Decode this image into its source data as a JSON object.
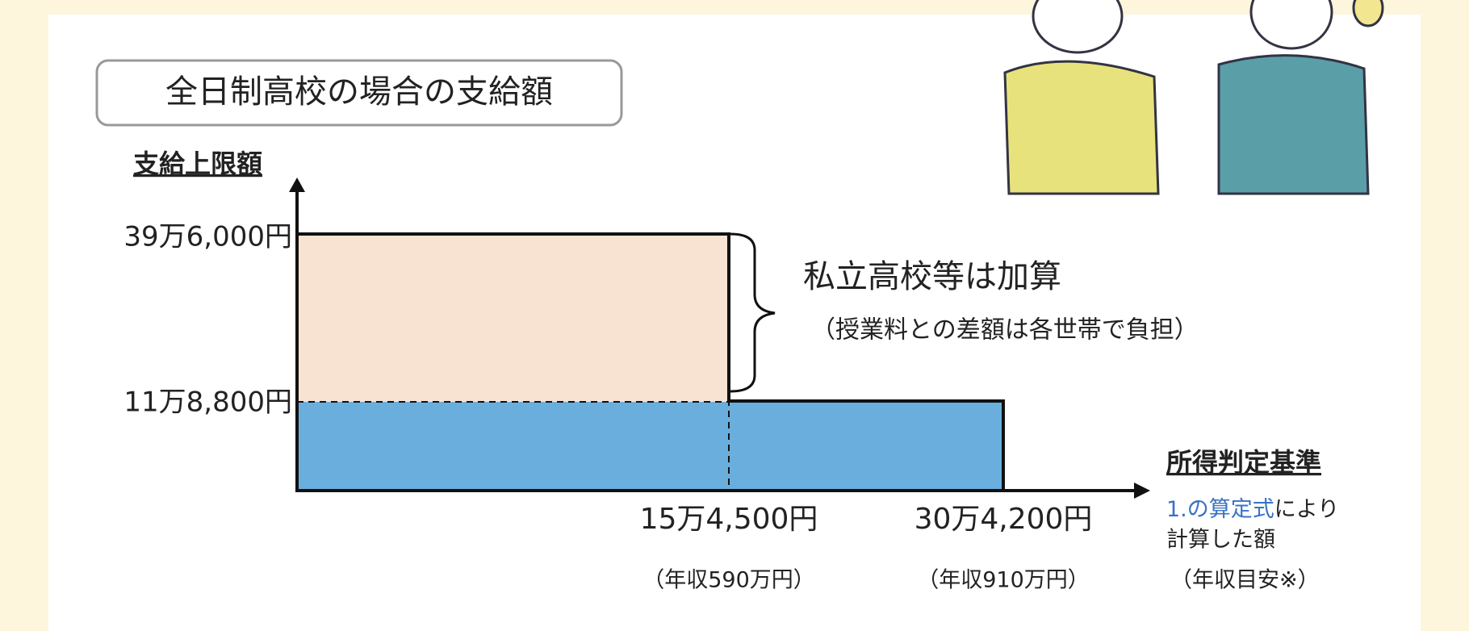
{
  "title": "全日制高校の場合の支給額",
  "y_axis": {
    "label": "支給上限額",
    "upper": "39万6,000円",
    "lower": "11万8,800円"
  },
  "bracket": {
    "text": "私立高校等は加算",
    "note": "（授業料との差額は各世帯で負担）"
  },
  "x_axis": {
    "label": "所得判定基準",
    "note_highlight": "1.の算定式",
    "note_rest": "により",
    "note_line2": "計算した額",
    "note_line3": "（年収目安※）",
    "ticks": [
      {
        "amount": "15万4,500円",
        "income": "（年収590万円）"
      },
      {
        "amount": "30万4,200円",
        "income": "（年収910万円）"
      }
    ]
  }
}
